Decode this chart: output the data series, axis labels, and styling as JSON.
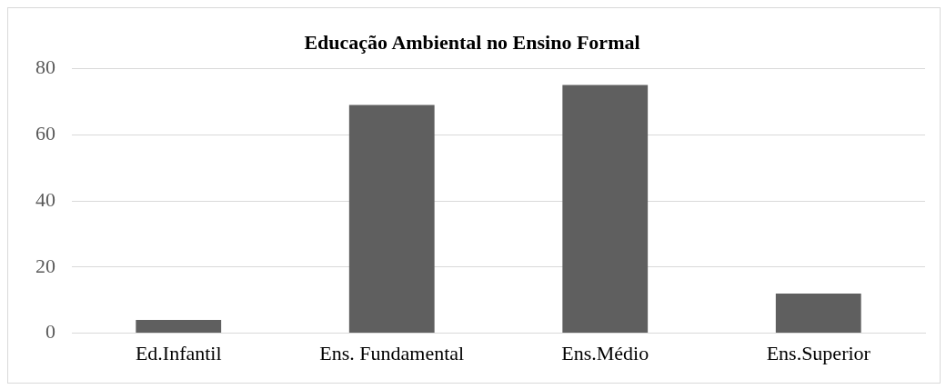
{
  "chart_data": {
    "type": "bar",
    "title": "Educação Ambiental no Ensino Formal",
    "categories": [
      "Ed.Infantil",
      "Ens. Fundamental",
      "Ens.Médio",
      "Ens.Superior"
    ],
    "values": [
      4,
      69,
      75,
      12
    ],
    "color": "#5f5f5f",
    "ylim": [
      0,
      80
    ],
    "yticks": [
      0,
      20,
      40,
      60,
      80
    ],
    "grid": "y",
    "legend": false
  }
}
